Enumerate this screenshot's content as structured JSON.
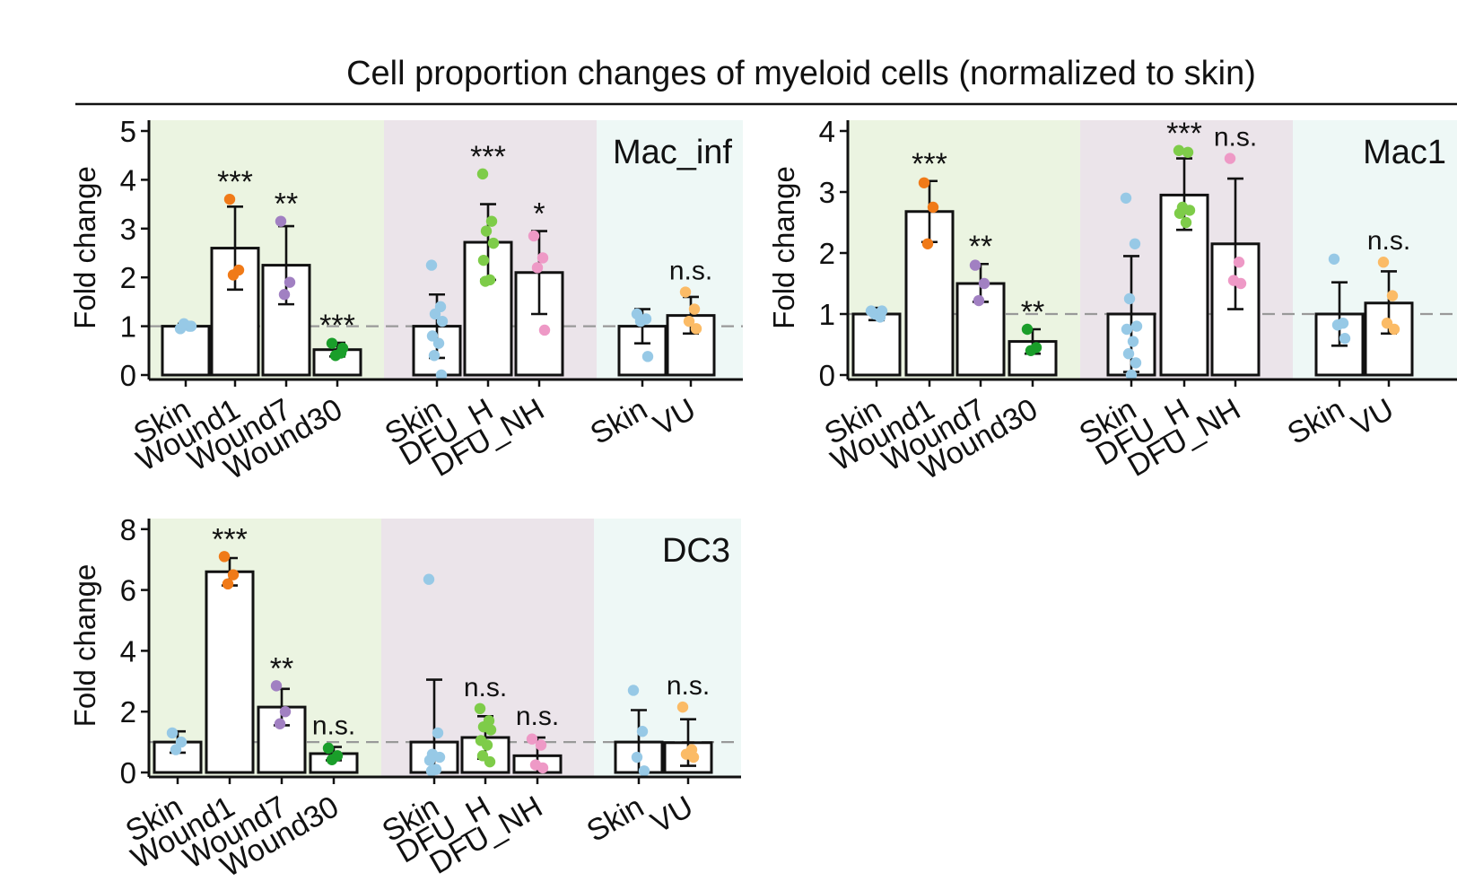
{
  "title": "Cell proportion changes of myeloid cells (normalized to skin)",
  "colors": {
    "group_bg": [
      "#ebf4e1",
      "#ebe4ea",
      "#eef8f6"
    ],
    "Skin": "#97c9e6",
    "Wound1": "#f07a18",
    "Wound7": "#a180c2",
    "Wound30": "#1a9e2a",
    "DFU_H": "#7ecc49",
    "DFU_NH": "#ee99c6",
    "VU": "#fbbb66",
    "bar_fill": "#ffffff",
    "bar_stroke": "#111111",
    "reference_line": "#999999"
  },
  "chart_data": [
    {
      "type": "bar",
      "title": "Mac_inf",
      "ylabel": "Fold change",
      "xlabel": "",
      "ylim": [
        0,
        5.2
      ],
      "yticks": [
        0,
        1,
        2,
        3,
        4,
        5
      ],
      "reference_line": 1,
      "groups": [
        {
          "bars": [
            {
              "label": "Skin",
              "mean": 1.0,
              "err": [
                0.95,
                1.05
              ],
              "points": [
                0.95,
                1.0,
                1.05,
                1.0
              ],
              "sig": ""
            },
            {
              "label": "Wound1",
              "mean": 2.6,
              "err": [
                1.75,
                3.45
              ],
              "points": [
                3.6,
                2.15,
                2.05
              ],
              "sig": "***"
            },
            {
              "label": "Wound7",
              "mean": 2.25,
              "err": [
                1.45,
                3.05
              ],
              "points": [
                3.15,
                1.9,
                1.65
              ],
              "sig": "**"
            },
            {
              "label": "Wound30",
              "mean": 0.52,
              "err": [
                0.38,
                0.66
              ],
              "points": [
                0.65,
                0.45,
                0.4,
                0.55
              ],
              "sig": "***"
            }
          ]
        },
        {
          "bars": [
            {
              "label": "Skin",
              "mean": 1.0,
              "err": [
                0.35,
                1.65
              ],
              "points": [
                2.25,
                1.4,
                1.25,
                1.1,
                0.8,
                0.65,
                0.4,
                0.0
              ],
              "sig": ""
            },
            {
              "label": "DFU_H",
              "mean": 2.72,
              "err": [
                1.95,
                3.5
              ],
              "points": [
                4.12,
                3.15,
                2.95,
                2.7,
                2.35,
                1.95,
                1.92
              ],
              "sig": "***"
            },
            {
              "label": "DFU_NH",
              "mean": 2.1,
              "err": [
                1.25,
                2.95
              ],
              "points": [
                2.85,
                2.4,
                2.2,
                0.92
              ],
              "sig": "*"
            }
          ]
        },
        {
          "bars": [
            {
              "label": "Skin",
              "mean": 1.0,
              "err": [
                0.65,
                1.35
              ],
              "points": [
                1.25,
                1.15,
                1.1,
                0.38
              ],
              "sig": ""
            },
            {
              "label": "VU",
              "mean": 1.22,
              "err": [
                0.85,
                1.6
              ],
              "points": [
                1.7,
                1.35,
                1.1,
                0.95
              ],
              "sig": "n.s."
            }
          ]
        }
      ]
    },
    {
      "type": "bar",
      "title": "Mac1",
      "ylabel": "Fold change",
      "xlabel": "",
      "ylim": [
        0,
        4.1
      ],
      "yticks": [
        0,
        1,
        2,
        3,
        4
      ],
      "reference_line": 1,
      "groups": [
        {
          "bars": [
            {
              "label": "Skin",
              "mean": 1.0,
              "err": [
                0.9,
                1.1
              ],
              "points": [
                1.05,
                0.95,
                1.0,
                1.05
              ],
              "sig": ""
            },
            {
              "label": "Wound1",
              "mean": 2.68,
              "err": [
                2.18,
                3.18
              ],
              "points": [
                3.15,
                2.75,
                2.15
              ],
              "sig": "***"
            },
            {
              "label": "Wound7",
              "mean": 1.5,
              "err": [
                1.2,
                1.82
              ],
              "points": [
                1.8,
                1.5,
                1.22
              ],
              "sig": "**"
            },
            {
              "label": "Wound30",
              "mean": 0.55,
              "err": [
                0.35,
                0.75
              ],
              "points": [
                0.75,
                0.45,
                0.4
              ],
              "sig": "**"
            }
          ]
        },
        {
          "bars": [
            {
              "label": "Skin",
              "mean": 1.0,
              "err": [
                0.05,
                1.95
              ],
              "points": [
                2.9,
                2.15,
                1.25,
                0.8,
                0.75,
                0.55,
                0.35,
                0.2,
                0.0
              ],
              "sig": ""
            },
            {
              "label": "DFU_H",
              "mean": 2.95,
              "err": [
                2.38,
                3.55
              ],
              "points": [
                3.68,
                3.65,
                2.75,
                2.7,
                2.65,
                2.5
              ],
              "sig": "***"
            },
            {
              "label": "DFU_NH",
              "mean": 2.15,
              "err": [
                1.08,
                3.22
              ],
              "points": [
                3.55,
                1.85,
                1.55,
                1.5
              ],
              "sig": "n.s."
            }
          ]
        },
        {
          "bars": [
            {
              "label": "Skin",
              "mean": 1.0,
              "err": [
                0.48,
                1.52
              ],
              "points": [
                1.9,
                0.85,
                0.82,
                0.6
              ],
              "sig": ""
            },
            {
              "label": "VU",
              "mean": 1.18,
              "err": [
                0.68,
                1.7
              ],
              "points": [
                1.85,
                1.3,
                0.85,
                0.75
              ],
              "sig": "n.s."
            }
          ]
        }
      ]
    },
    {
      "type": "bar",
      "title": "DC3",
      "ylabel": "Fold change",
      "xlabel": "",
      "ylim": [
        0,
        8.2
      ],
      "yticks": [
        0,
        2,
        4,
        6,
        8
      ],
      "reference_line": 1,
      "groups": [
        {
          "bars": [
            {
              "label": "Skin",
              "mean": 1.0,
              "err": [
                0.65,
                1.35
              ],
              "points": [
                1.3,
                1.0,
                0.75
              ],
              "sig": ""
            },
            {
              "label": "Wound1",
              "mean": 6.6,
              "err": [
                6.15,
                7.05
              ],
              "points": [
                7.1,
                6.5,
                6.2
              ],
              "sig": "***"
            },
            {
              "label": "Wound7",
              "mean": 2.15,
              "err": [
                1.55,
                2.75
              ],
              "points": [
                2.85,
                2.0,
                1.6
              ],
              "sig": "**"
            },
            {
              "label": "Wound30",
              "mean": 0.62,
              "err": [
                0.4,
                0.84
              ],
              "points": [
                0.8,
                0.55,
                0.42
              ],
              "sig": "n.s."
            }
          ]
        },
        {
          "bars": [
            {
              "label": "Skin",
              "mean": 1.0,
              "err": [
                0.0,
                3.05
              ],
              "points": [
                6.35,
                1.3,
                0.6,
                0.5,
                0.4,
                0.1,
                0.05
              ],
              "sig": ""
            },
            {
              "label": "DFU_H",
              "mean": 1.15,
              "err": [
                0.45,
                1.85
              ],
              "points": [
                2.1,
                1.7,
                1.5,
                1.4,
                1.05,
                0.9,
                0.55,
                0.35
              ],
              "sig": "n.s."
            },
            {
              "label": "DFU_NH",
              "mean": 0.55,
              "err": [
                0.0,
                1.15
              ],
              "points": [
                1.1,
                0.9,
                0.25,
                0.15
              ],
              "sig": "n.s."
            }
          ]
        },
        {
          "bars": [
            {
              "label": "Skin",
              "mean": 1.0,
              "err": [
                0.0,
                2.05
              ],
              "points": [
                2.7,
                1.35,
                0.5,
                0.05
              ],
              "sig": ""
            },
            {
              "label": "VU",
              "mean": 0.98,
              "err": [
                0.22,
                1.75
              ],
              "points": [
                2.15,
                0.75,
                0.6,
                0.5
              ],
              "sig": "n.s."
            }
          ]
        }
      ]
    }
  ]
}
